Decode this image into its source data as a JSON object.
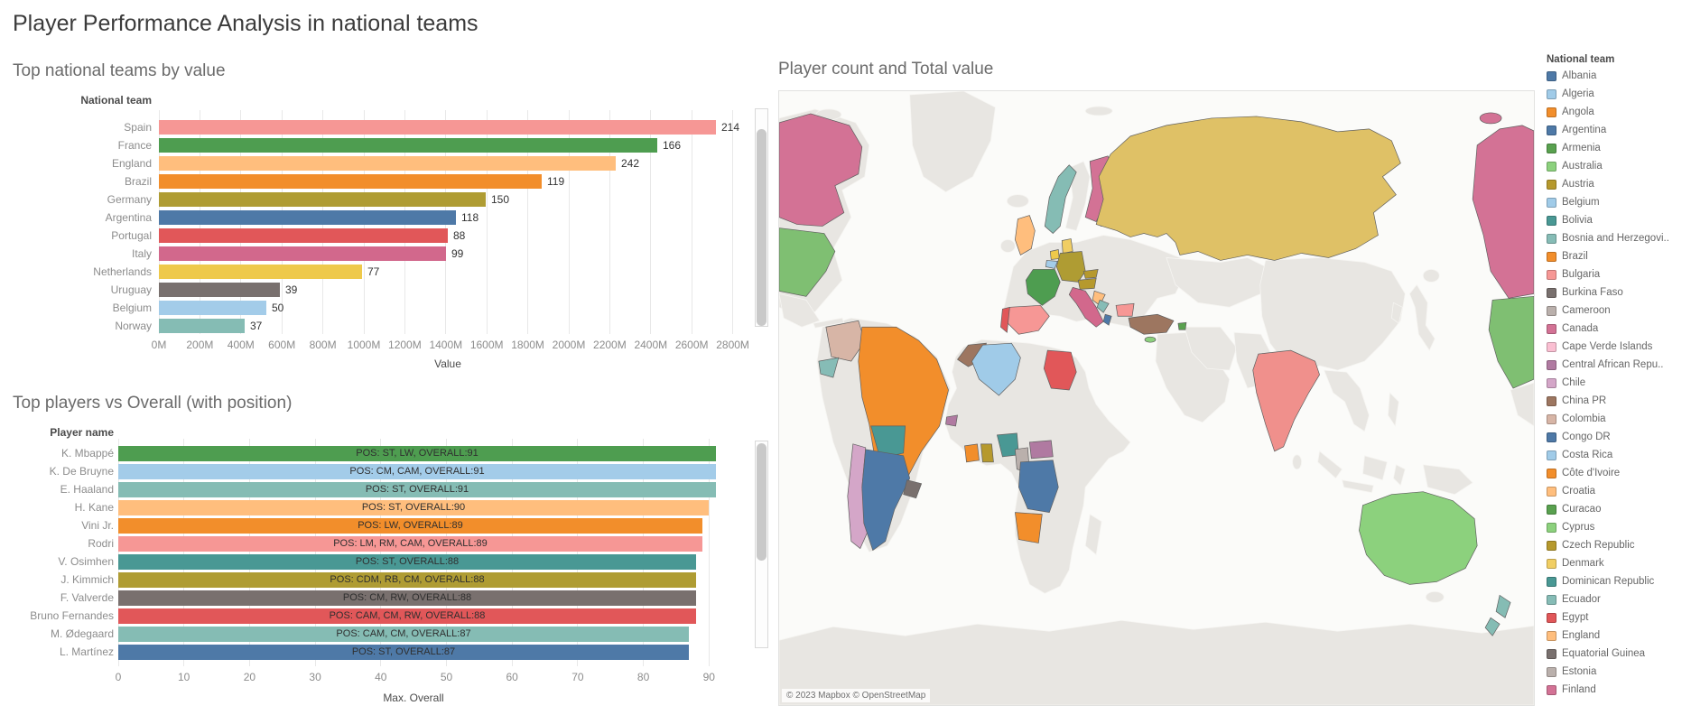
{
  "page": {
    "title": "Player Performance Analysis in national teams"
  },
  "chart_data": [
    {
      "type": "bar",
      "orientation": "horizontal",
      "title": "Top national teams by value",
      "col_header": "National team",
      "xlabel": "Value",
      "xlim_m": [
        0,
        2900
      ],
      "ticks": [
        "0M",
        "200M",
        "400M",
        "600M",
        "800M",
        "1000M",
        "1200M",
        "1400M",
        "1600M",
        "1800M",
        "2000M",
        "2200M",
        "2400M",
        "2600M",
        "2800M"
      ],
      "grid": true,
      "rows": [
        {
          "team": "Spain",
          "value_m": 2720,
          "count_label": "214",
          "color": "#F69795"
        },
        {
          "team": "France",
          "value_m": 2430,
          "count_label": "166",
          "color": "#4E9D50"
        },
        {
          "team": "England",
          "value_m": 2230,
          "count_label": "242",
          "color": "#FFBE7D"
        },
        {
          "team": "Brazil",
          "value_m": 1870,
          "count_label": "119",
          "color": "#F28E2B"
        },
        {
          "team": "Germany",
          "value_m": 1595,
          "count_label": "150",
          "color": "#AF9C33"
        },
        {
          "team": "Argentina",
          "value_m": 1450,
          "count_label": "118",
          "color": "#4E79A7"
        },
        {
          "team": "Portugal",
          "value_m": 1410,
          "count_label": "88",
          "color": "#E15759"
        },
        {
          "team": "Italy",
          "value_m": 1400,
          "count_label": "99",
          "color": "#D2688C"
        },
        {
          "team": "Netherlands",
          "value_m": 990,
          "count_label": "77",
          "color": "#EEC94B"
        },
        {
          "team": "Uruguay",
          "value_m": 590,
          "count_label": "39",
          "color": "#79706E"
        },
        {
          "team": "Belgium",
          "value_m": 525,
          "count_label": "50",
          "color": "#A3CCE9"
        },
        {
          "team": "Norway",
          "value_m": 420,
          "count_label": "37",
          "color": "#85BCB4"
        }
      ]
    },
    {
      "type": "bar",
      "orientation": "horizontal",
      "title": "Top players vs Overall (with position)",
      "col_header": "Player name",
      "xlabel": "Max. Overall",
      "xlim": [
        0,
        90
      ],
      "ticks": [
        "0",
        "10",
        "20",
        "30",
        "40",
        "50",
        "60",
        "70",
        "80",
        "90"
      ],
      "grid": true,
      "rows": [
        {
          "player": "K. Mbappé",
          "overall": 91,
          "bar_label": "POS: ST, LW, OVERALL:91",
          "color": "#4E9D50"
        },
        {
          "player": "K. De Bruyne",
          "overall": 91,
          "bar_label": "POS: CM, CAM, OVERALL:91",
          "color": "#A3CCE9"
        },
        {
          "player": "E. Haaland",
          "overall": 91,
          "bar_label": "POS: ST, OVERALL:91",
          "color": "#85BCB4"
        },
        {
          "player": "H. Kane",
          "overall": 90,
          "bar_label": "POS: ST, OVERALL:90",
          "color": "#FFBE7D"
        },
        {
          "player": "Vini Jr.",
          "overall": 89,
          "bar_label": "POS: LW, OVERALL:89",
          "color": "#F28E2B"
        },
        {
          "player": "Rodri",
          "overall": 89,
          "bar_label": "POS: LM, RM, CAM, OVERALL:89",
          "color": "#F69795"
        },
        {
          "player": "V. Osimhen",
          "overall": 88,
          "bar_label": "POS: ST, OVERALL:88",
          "color": "#499894"
        },
        {
          "player": "J. Kimmich",
          "overall": 88,
          "bar_label": "POS: CDM, RB, CM, OVERALL:88",
          "color": "#AF9C33"
        },
        {
          "player": "F. Valverde",
          "overall": 88,
          "bar_label": "POS: CM, RW, OVERALL:88",
          "color": "#79706E"
        },
        {
          "player": "Bruno Fernandes",
          "overall": 88,
          "bar_label": "POS: CAM, CM, RW, OVERALL:88",
          "color": "#E15759"
        },
        {
          "player": "M. Ødegaard",
          "overall": 87,
          "bar_label": "POS: CAM, CM, OVERALL:87",
          "color": "#85BCB4"
        },
        {
          "player": "L. Martínez",
          "overall": 87,
          "bar_label": "POS: ST, OVERALL:87",
          "color": "#4E79A7"
        }
      ]
    },
    {
      "type": "choropleth-map",
      "title": "Player count and Total value",
      "attribution": "© 2023 Mapbox © OpenStreetMap",
      "style": {
        "ocean": "#fbfbf9",
        "land": "#e8e6e2",
        "country_stroke": "#5f5f5f"
      },
      "regions": {
        "canada": "#D37295",
        "usa": "#7FBF72",
        "colombia": "#D7B5A6",
        "ecuador": "#86BCB6",
        "brazil": "#F28E2B",
        "bolivia": "#499894",
        "chile": "#D4A6C8",
        "argentina": "#4E79A7",
        "uruguay": "#79706E",
        "norway": "#85BCB4",
        "finland": "#D37295",
        "denmark": "#F1CE63",
        "estonia": "#BAB0AC",
        "england": "#FFBE7D",
        "netherlands": "#EEC94B",
        "belgium": "#A3CCE9",
        "germany": "#AF9C33",
        "france": "#4E9D50",
        "spain": "#F69795",
        "portugal": "#E15759",
        "italy": "#D2688C",
        "austria": "#B6992D",
        "czech_republic": "#B6992D",
        "croatia": "#FFBE7D",
        "bosnia": "#86BCB6",
        "albania": "#4E79A7",
        "bulgaria": "#F69795",
        "russia": "#DFC166",
        "turkey": "#9D7660",
        "armenia": "#59A14F",
        "cyprus": "#8CD17D",
        "morocco": "#9D7660",
        "algeria": "#A0CBE8",
        "egypt": "#E15759",
        "senegal": "#B07AA1",
        "cote_divoire": "#F28E2B",
        "ghana": "#B6992D",
        "nigeria": "#499894",
        "cameroon": "#BAB0AC",
        "central_african_republic": "#B07AA1",
        "congo_dr": "#4E79A7",
        "angola": "#F28E2B",
        "india": "#F0908C",
        "australia": "#8CD17D",
        "new_zealand": "#85BCB4"
      }
    }
  ],
  "legend": {
    "title": "National team",
    "items": [
      {
        "label": "Albania",
        "color": "#4E79A7"
      },
      {
        "label": "Algeria",
        "color": "#A0CBE8"
      },
      {
        "label": "Angola",
        "color": "#F28E2B"
      },
      {
        "label": "Argentina",
        "color": "#4E79A7"
      },
      {
        "label": "Armenia",
        "color": "#59A14F"
      },
      {
        "label": "Australia",
        "color": "#8CD17D"
      },
      {
        "label": "Austria",
        "color": "#B6992D"
      },
      {
        "label": "Belgium",
        "color": "#A0CBE8"
      },
      {
        "label": "Bolivia",
        "color": "#499894"
      },
      {
        "label": "Bosnia and Herzegovi..",
        "color": "#86BCB6"
      },
      {
        "label": "Brazil",
        "color": "#F28E2B"
      },
      {
        "label": "Bulgaria",
        "color": "#F69795"
      },
      {
        "label": "Burkina Faso",
        "color": "#79706E"
      },
      {
        "label": "Cameroon",
        "color": "#BAB0AC"
      },
      {
        "label": "Canada",
        "color": "#D37295"
      },
      {
        "label": "Cape Verde Islands",
        "color": "#FABFD2"
      },
      {
        "label": "Central African Repu..",
        "color": "#B07AA1"
      },
      {
        "label": "Chile",
        "color": "#D4A6C8"
      },
      {
        "label": "China PR",
        "color": "#9D7660"
      },
      {
        "label": "Colombia",
        "color": "#D7B5A6"
      },
      {
        "label": "Congo DR",
        "color": "#4E79A7"
      },
      {
        "label": "Costa Rica",
        "color": "#A0CBE8"
      },
      {
        "label": "Côte d'Ivoire",
        "color": "#F28E2B"
      },
      {
        "label": "Croatia",
        "color": "#FFBE7D"
      },
      {
        "label": "Curacao",
        "color": "#59A14F"
      },
      {
        "label": "Cyprus",
        "color": "#8CD17D"
      },
      {
        "label": "Czech Republic",
        "color": "#B6992D"
      },
      {
        "label": "Denmark",
        "color": "#F1CE63"
      },
      {
        "label": "Dominican Republic",
        "color": "#499894"
      },
      {
        "label": "Ecuador",
        "color": "#86BCB6"
      },
      {
        "label": "Egypt",
        "color": "#E15759"
      },
      {
        "label": "England",
        "color": "#FFBE7D"
      },
      {
        "label": "Equatorial Guinea",
        "color": "#79706E"
      },
      {
        "label": "Estonia",
        "color": "#BAB0AC"
      },
      {
        "label": "Finland",
        "color": "#D37295"
      }
    ]
  }
}
